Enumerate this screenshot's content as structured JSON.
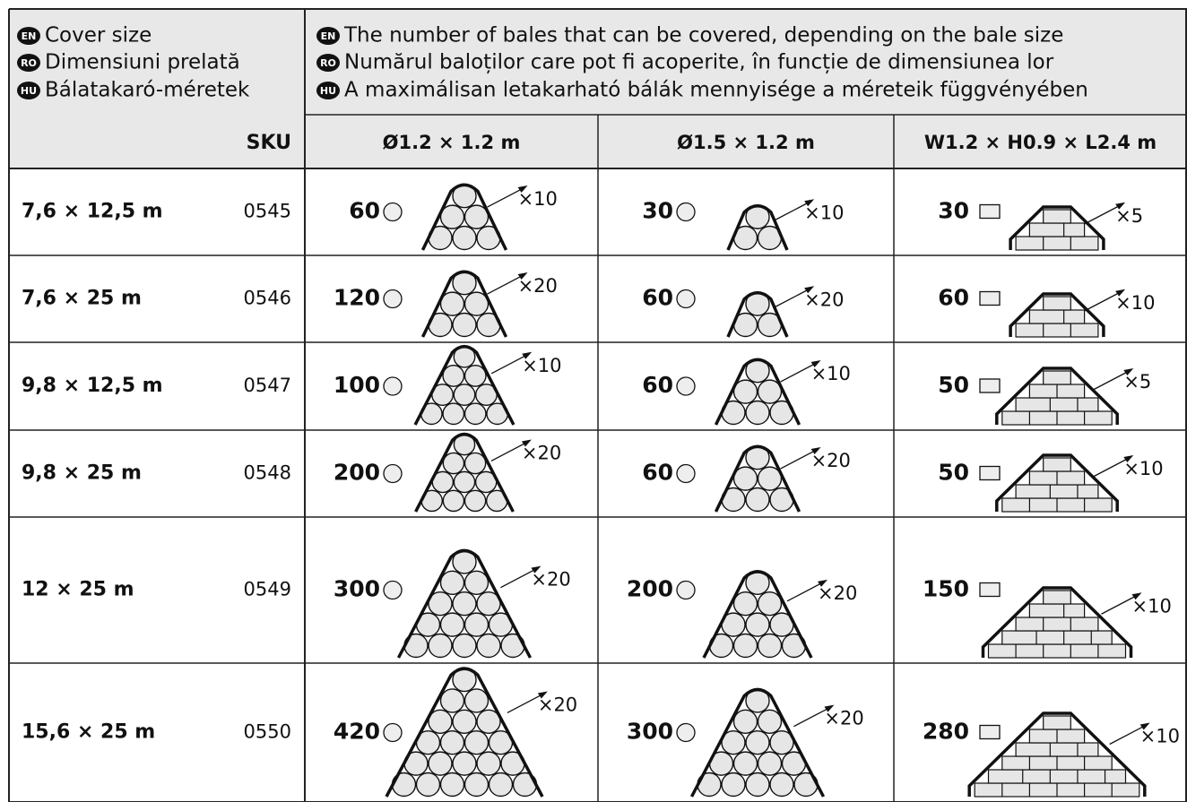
{
  "header": {
    "cover_size": [
      {
        "lang": "EN",
        "text": "Cover size"
      },
      {
        "lang": "RO",
        "text": "Dimensiuni prelată"
      },
      {
        "lang": "HU",
        "text": "Bálatakaró-méretek"
      }
    ],
    "bales": [
      {
        "lang": "EN",
        "text": "The number of bales that can be covered, depending on the bale size"
      },
      {
        "lang": "RO",
        "text": "Numărul baloților care pot fi acoperite, în funcție de dimensiunea lor"
      },
      {
        "lang": "HU",
        "text": "A maximálisan letakarható bálák mennyisége a méreteik függvényében"
      }
    ],
    "sku": "SKU",
    "columns": [
      "Ø1.2 × 1.2 m",
      "Ø1.5 × 1.2 m",
      "W1.2 × H0.9 × L2.4 m"
    ]
  },
  "rows": [
    {
      "size": "7,6 × 12,5 m",
      "sku": "0545",
      "cells": [
        {
          "count": "60",
          "mult": "×10"
        },
        {
          "count": "30",
          "mult": "×10"
        },
        {
          "count": "30",
          "mult": "×5"
        }
      ]
    },
    {
      "size": "7,6 × 25 m",
      "sku": "0546",
      "cells": [
        {
          "count": "120",
          "mult": "×20"
        },
        {
          "count": "60",
          "mult": "×20"
        },
        {
          "count": "60",
          "mult": "×10"
        }
      ]
    },
    {
      "size": "9,8 × 12,5 m",
      "sku": "0547",
      "cells": [
        {
          "count": "100",
          "mult": "×10"
        },
        {
          "count": "60",
          "mult": "×10"
        },
        {
          "count": "50",
          "mult": "×5"
        }
      ]
    },
    {
      "size": "9,8 × 25 m",
      "sku": "0548",
      "cells": [
        {
          "count": "200",
          "mult": "×20"
        },
        {
          "count": "60",
          "mult": "×20"
        },
        {
          "count": "50",
          "mult": "×10"
        }
      ]
    },
    {
      "size": "12 × 25 m",
      "sku": "0549",
      "cells": [
        {
          "count": "300",
          "mult": "×20"
        },
        {
          "count": "200",
          "mult": "×20"
        },
        {
          "count": "150",
          "mult": "×10"
        }
      ]
    },
    {
      "size": "15,6 × 25 m",
      "sku": "0550",
      "cells": [
        {
          "count": "420",
          "mult": "×20"
        },
        {
          "count": "300",
          "mult": "×20"
        },
        {
          "count": "280",
          "mult": "×10"
        }
      ]
    }
  ]
}
